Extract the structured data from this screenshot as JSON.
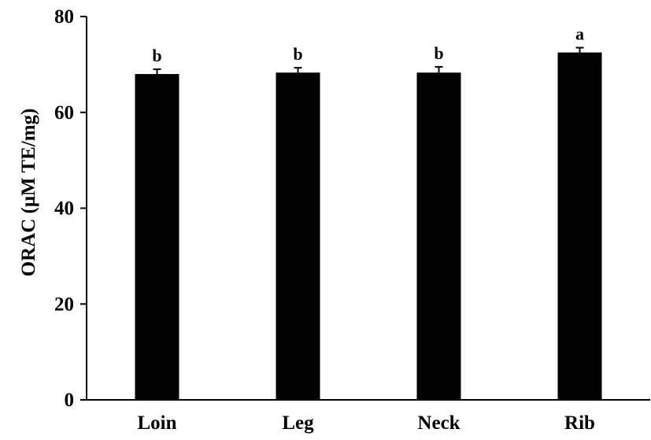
{
  "chart_data": {
    "type": "bar",
    "title": "",
    "xlabel": "",
    "ylabel": "ORAC (μM TE/mg)",
    "ylim": [
      0,
      80
    ],
    "yticks": [
      0,
      20,
      40,
      60,
      80
    ],
    "categories": [
      "Loin",
      "Leg",
      "Neck",
      "Rib"
    ],
    "series": [
      {
        "values": [
          68.0,
          68.3,
          68.3,
          72.5
        ],
        "errors": [
          1.0,
          1.0,
          1.2,
          1.0
        ]
      }
    ],
    "significance_labels": [
      "b",
      "b",
      "b",
      "a"
    ],
    "grid": false,
    "legend": "none",
    "bar_color": "#000000"
  }
}
